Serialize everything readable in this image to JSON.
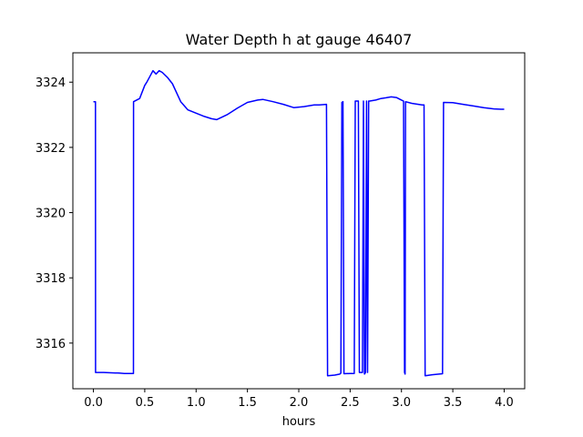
{
  "chart_data": {
    "type": "line",
    "title": "Water Depth h at gauge 46407",
    "xlabel": "hours",
    "ylabel": "",
    "xlim": [
      -0.2,
      4.2
    ],
    "ylim": [
      3314.6,
      3324.9
    ],
    "xticks": [
      0.0,
      0.5,
      1.0,
      1.5,
      2.0,
      2.5,
      3.0,
      3.5,
      4.0
    ],
    "xtick_labels": [
      "0.0",
      "0.5",
      "1.0",
      "1.5",
      "2.0",
      "2.5",
      "3.0",
      "3.5",
      "4.0"
    ],
    "yticks": [
      3316,
      3318,
      3320,
      3322,
      3324
    ],
    "ytick_labels": [
      "3316",
      "3318",
      "3320",
      "3322",
      "3324"
    ],
    "grid": false,
    "series": [
      {
        "name": "",
        "color": "#0000ff",
        "x": [
          0.0,
          0.02,
          0.021,
          0.1,
          0.25,
          0.3,
          0.39,
          0.391,
          0.45,
          0.5,
          0.52,
          0.58,
          0.61,
          0.64,
          0.67,
          0.72,
          0.77,
          0.85,
          0.92,
          1.0,
          1.08,
          1.15,
          1.2,
          1.3,
          1.4,
          1.5,
          1.6,
          1.65,
          1.75,
          1.85,
          1.95,
          2.05,
          2.15,
          2.2,
          2.27,
          2.28,
          2.35,
          2.4,
          2.41,
          2.42,
          2.43,
          2.44,
          2.5,
          2.54,
          2.55,
          2.58,
          2.59,
          2.6,
          2.62,
          2.63,
          2.64,
          2.65,
          2.66,
          2.67,
          2.68,
          2.69,
          2.75,
          2.8,
          2.85,
          2.9,
          2.95,
          3.0,
          3.02,
          3.03,
          3.035,
          3.04,
          3.1,
          3.2,
          3.22,
          3.23,
          3.3,
          3.4,
          3.41,
          3.5,
          3.6,
          3.7,
          3.8,
          3.9,
          3.97,
          4.0
        ],
        "y": [
          3323.4,
          3323.4,
          3315.1,
          3315.1,
          3315.08,
          3315.07,
          3315.07,
          3323.4,
          3323.5,
          3323.9,
          3324.0,
          3324.35,
          3324.25,
          3324.35,
          3324.3,
          3324.15,
          3323.95,
          3323.4,
          3323.15,
          3323.05,
          3322.95,
          3322.88,
          3322.85,
          3323.0,
          3323.2,
          3323.38,
          3323.45,
          3323.47,
          3323.4,
          3323.32,
          3323.22,
          3323.25,
          3323.3,
          3323.3,
          3323.32,
          3315.0,
          3315.02,
          3315.05,
          3315.08,
          3323.38,
          3323.4,
          3315.06,
          3315.07,
          3315.07,
          3323.42,
          3323.42,
          3315.1,
          3315.1,
          3315.1,
          3323.42,
          3315.05,
          3315.1,
          3323.42,
          3315.1,
          3323.42,
          3323.42,
          3323.45,
          3323.5,
          3323.52,
          3323.55,
          3323.53,
          3323.45,
          3323.42,
          3315.1,
          3315.05,
          3323.4,
          3323.35,
          3323.3,
          3323.3,
          3315.0,
          3315.03,
          3315.06,
          3323.38,
          3323.37,
          3323.32,
          3323.27,
          3323.22,
          3323.18,
          3323.17,
          3323.17
        ]
      }
    ]
  }
}
